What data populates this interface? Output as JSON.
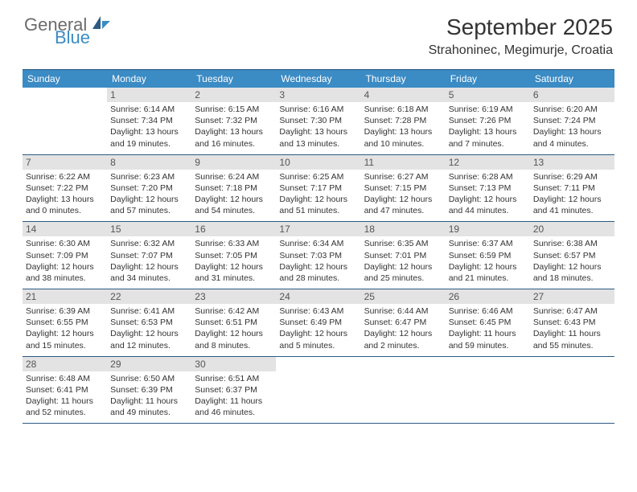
{
  "logo": {
    "general": "General",
    "blue": "Blue"
  },
  "title": "September 2025",
  "location": "Strahoninec, Megimurje, Croatia",
  "colors": {
    "header_bg": "#3b8bc4",
    "header_text": "#ffffff",
    "daynum_bg": "#e3e3e3",
    "daynum_text": "#555555",
    "border": "#2c5a82",
    "body_text": "#333333",
    "logo_gray": "#6b6b6b",
    "logo_blue": "#3b8bc4",
    "page_bg": "#ffffff"
  },
  "typography": {
    "month_title_fontsize": 28,
    "location_fontsize": 16,
    "dow_fontsize": 12,
    "daynum_fontsize": 12,
    "info_fontsize": 10.5
  },
  "dow": [
    "Sunday",
    "Monday",
    "Tuesday",
    "Wednesday",
    "Thursday",
    "Friday",
    "Saturday"
  ],
  "weeks": [
    [
      null,
      {
        "n": "1",
        "sr": "6:14 AM",
        "ss": "7:34 PM",
        "dl": "13 hours and 19 minutes."
      },
      {
        "n": "2",
        "sr": "6:15 AM",
        "ss": "7:32 PM",
        "dl": "13 hours and 16 minutes."
      },
      {
        "n": "3",
        "sr": "6:16 AM",
        "ss": "7:30 PM",
        "dl": "13 hours and 13 minutes."
      },
      {
        "n": "4",
        "sr": "6:18 AM",
        "ss": "7:28 PM",
        "dl": "13 hours and 10 minutes."
      },
      {
        "n": "5",
        "sr": "6:19 AM",
        "ss": "7:26 PM",
        "dl": "13 hours and 7 minutes."
      },
      {
        "n": "6",
        "sr": "6:20 AM",
        "ss": "7:24 PM",
        "dl": "13 hours and 4 minutes."
      }
    ],
    [
      {
        "n": "7",
        "sr": "6:22 AM",
        "ss": "7:22 PM",
        "dl": "13 hours and 0 minutes."
      },
      {
        "n": "8",
        "sr": "6:23 AM",
        "ss": "7:20 PM",
        "dl": "12 hours and 57 minutes."
      },
      {
        "n": "9",
        "sr": "6:24 AM",
        "ss": "7:18 PM",
        "dl": "12 hours and 54 minutes."
      },
      {
        "n": "10",
        "sr": "6:25 AM",
        "ss": "7:17 PM",
        "dl": "12 hours and 51 minutes."
      },
      {
        "n": "11",
        "sr": "6:27 AM",
        "ss": "7:15 PM",
        "dl": "12 hours and 47 minutes."
      },
      {
        "n": "12",
        "sr": "6:28 AM",
        "ss": "7:13 PM",
        "dl": "12 hours and 44 minutes."
      },
      {
        "n": "13",
        "sr": "6:29 AM",
        "ss": "7:11 PM",
        "dl": "12 hours and 41 minutes."
      }
    ],
    [
      {
        "n": "14",
        "sr": "6:30 AM",
        "ss": "7:09 PM",
        "dl": "12 hours and 38 minutes."
      },
      {
        "n": "15",
        "sr": "6:32 AM",
        "ss": "7:07 PM",
        "dl": "12 hours and 34 minutes."
      },
      {
        "n": "16",
        "sr": "6:33 AM",
        "ss": "7:05 PM",
        "dl": "12 hours and 31 minutes."
      },
      {
        "n": "17",
        "sr": "6:34 AM",
        "ss": "7:03 PM",
        "dl": "12 hours and 28 minutes."
      },
      {
        "n": "18",
        "sr": "6:35 AM",
        "ss": "7:01 PM",
        "dl": "12 hours and 25 minutes."
      },
      {
        "n": "19",
        "sr": "6:37 AM",
        "ss": "6:59 PM",
        "dl": "12 hours and 21 minutes."
      },
      {
        "n": "20",
        "sr": "6:38 AM",
        "ss": "6:57 PM",
        "dl": "12 hours and 18 minutes."
      }
    ],
    [
      {
        "n": "21",
        "sr": "6:39 AM",
        "ss": "6:55 PM",
        "dl": "12 hours and 15 minutes."
      },
      {
        "n": "22",
        "sr": "6:41 AM",
        "ss": "6:53 PM",
        "dl": "12 hours and 12 minutes."
      },
      {
        "n": "23",
        "sr": "6:42 AM",
        "ss": "6:51 PM",
        "dl": "12 hours and 8 minutes."
      },
      {
        "n": "24",
        "sr": "6:43 AM",
        "ss": "6:49 PM",
        "dl": "12 hours and 5 minutes."
      },
      {
        "n": "25",
        "sr": "6:44 AM",
        "ss": "6:47 PM",
        "dl": "12 hours and 2 minutes."
      },
      {
        "n": "26",
        "sr": "6:46 AM",
        "ss": "6:45 PM",
        "dl": "11 hours and 59 minutes."
      },
      {
        "n": "27",
        "sr": "6:47 AM",
        "ss": "6:43 PM",
        "dl": "11 hours and 55 minutes."
      }
    ],
    [
      {
        "n": "28",
        "sr": "6:48 AM",
        "ss": "6:41 PM",
        "dl": "11 hours and 52 minutes."
      },
      {
        "n": "29",
        "sr": "6:50 AM",
        "ss": "6:39 PM",
        "dl": "11 hours and 49 minutes."
      },
      {
        "n": "30",
        "sr": "6:51 AM",
        "ss": "6:37 PM",
        "dl": "11 hours and 46 minutes."
      },
      null,
      null,
      null,
      null
    ]
  ],
  "labels": {
    "sunrise": "Sunrise:",
    "sunset": "Sunset:",
    "daylight": "Daylight:"
  }
}
